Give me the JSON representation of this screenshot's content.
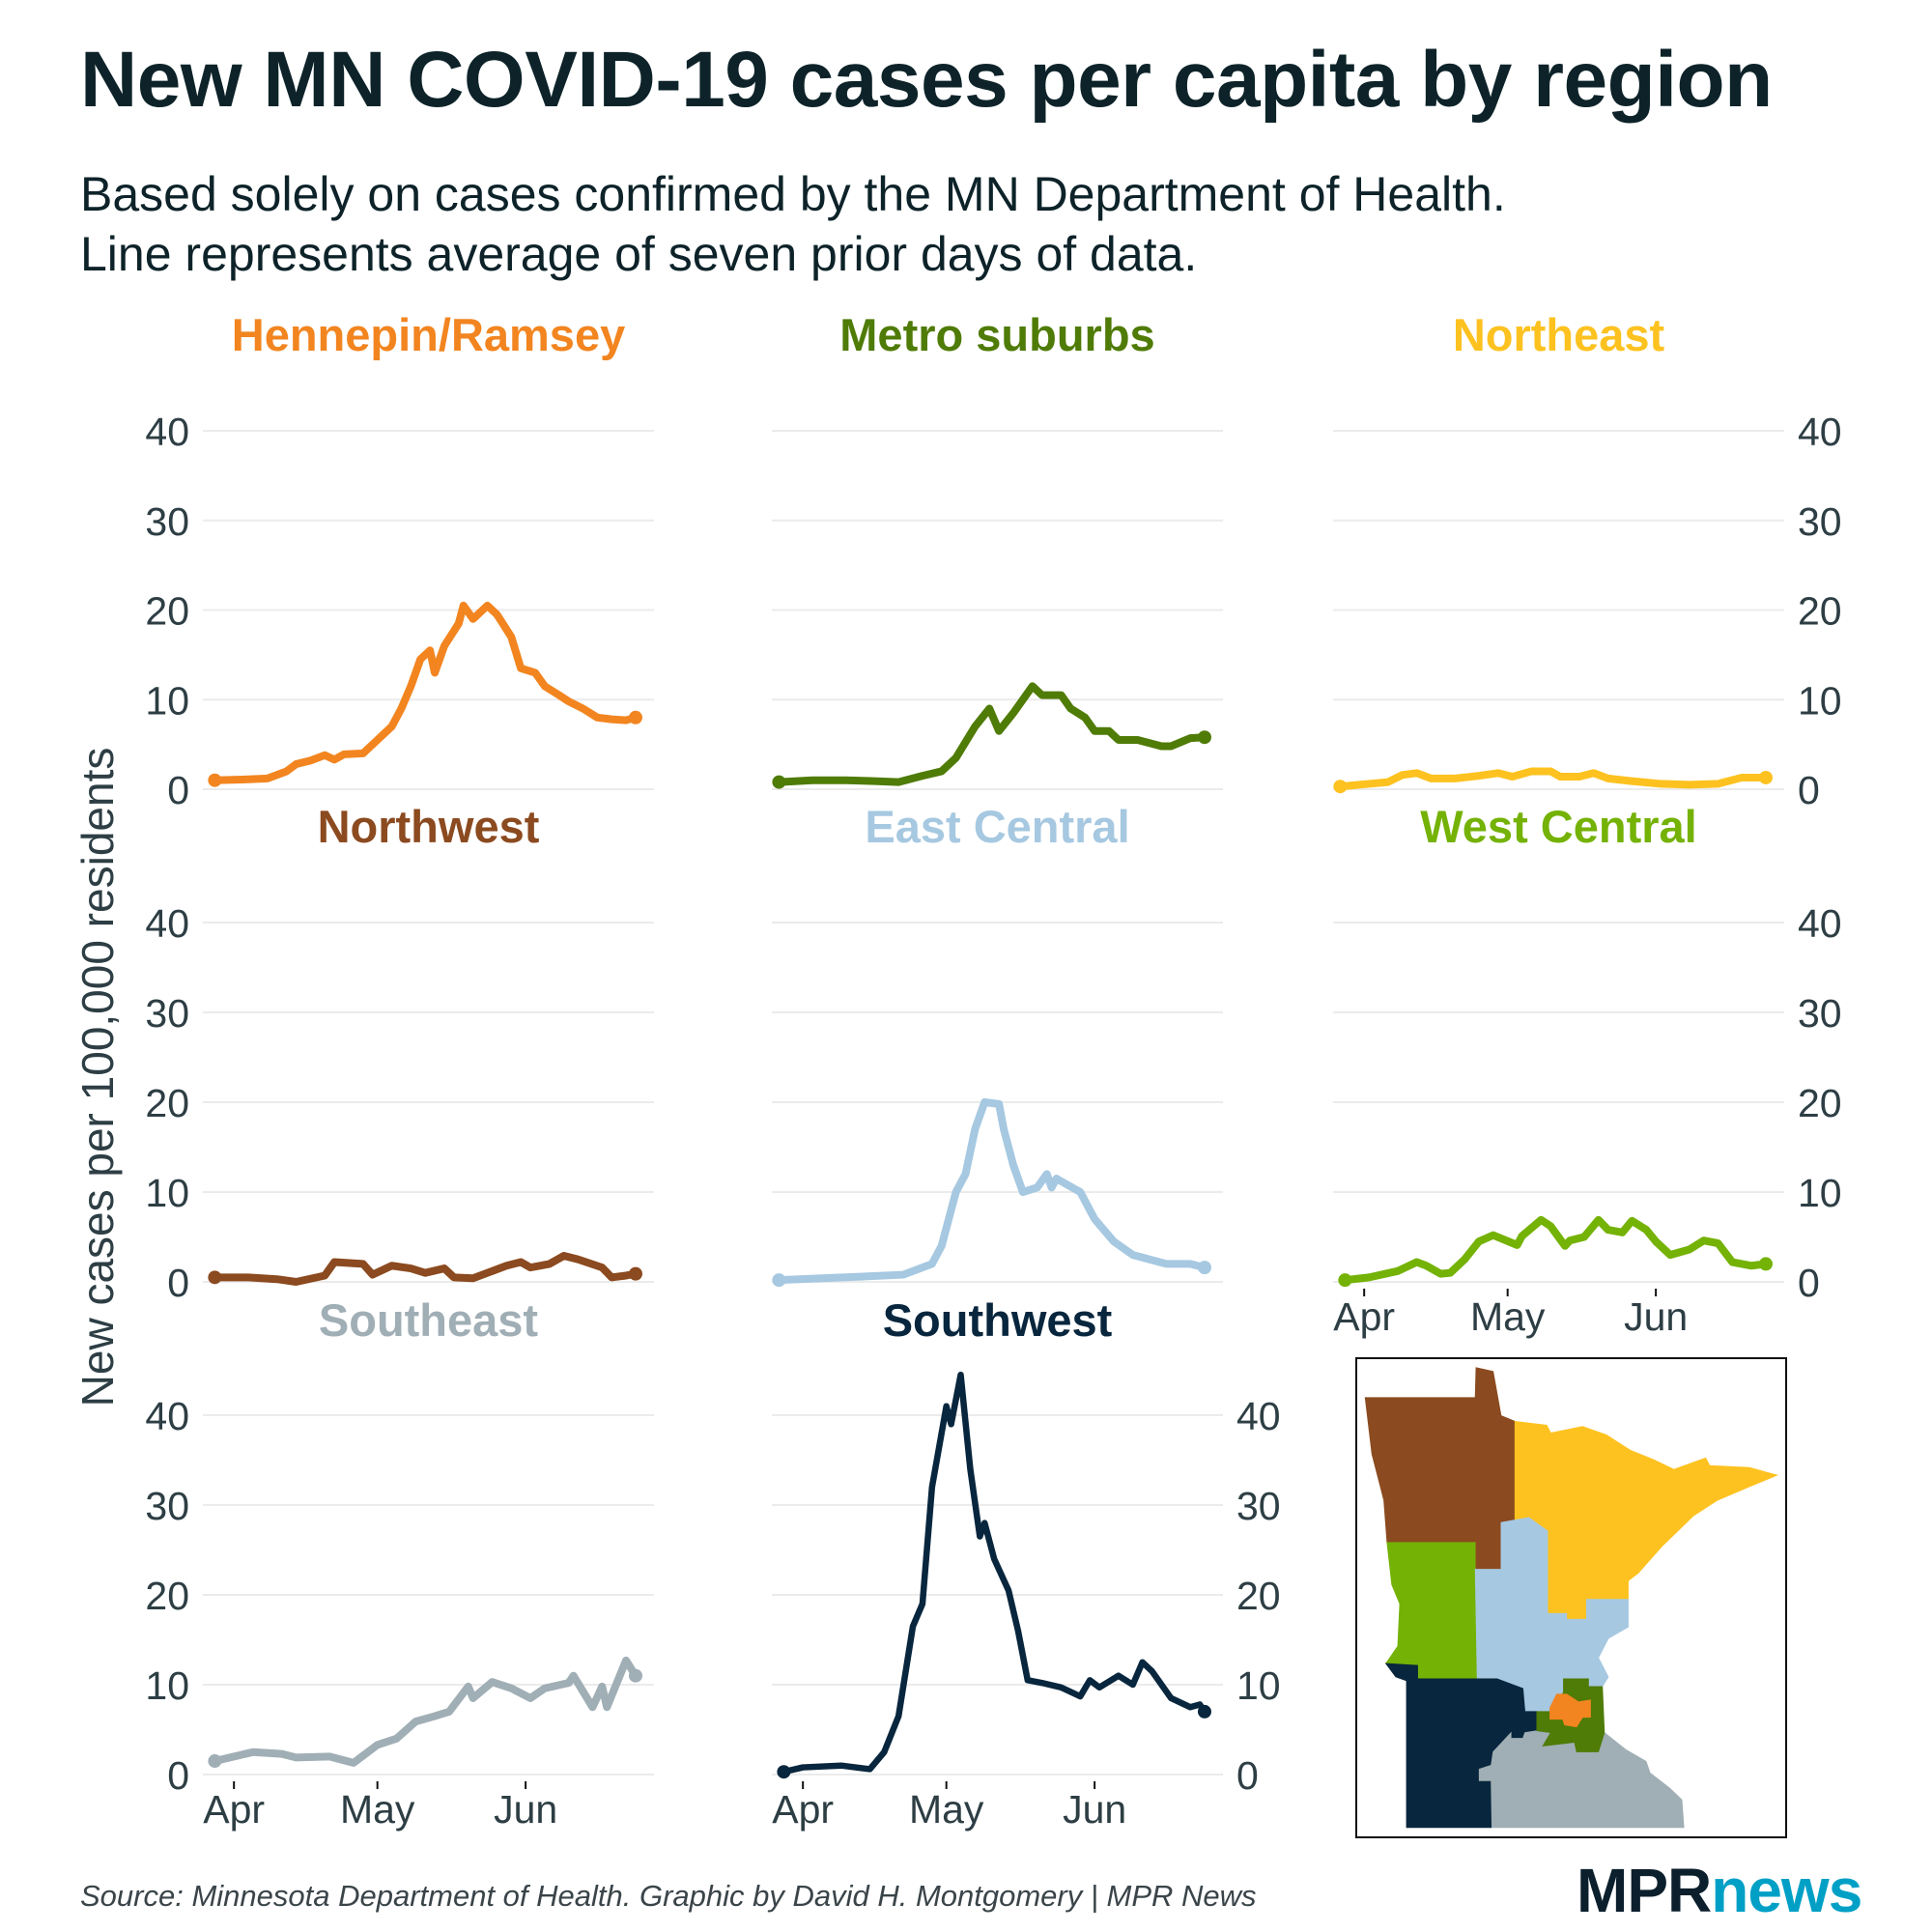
{
  "title": "New MN COVID-19 cases per capita by region",
  "subtitle": [
    "Based solely on cases confirmed by the MN Department of Health.",
    "Line represents average of seven prior days of data."
  ],
  "source": "Source: Minnesota Department of Health. Graphic by David H. Montgomery | MPR News",
  "logo": {
    "mpr": "MPR",
    "news": "news",
    "mpr_color": "#0B1F2C",
    "news_color": "#00A0C6"
  },
  "chart_data": {
    "type": "line",
    "layout": "small multiples, 3x3 grid with inset map",
    "ylabel": "New cases per 100,000 residents",
    "ylim": [
      0,
      40
    ],
    "y_ticks": [
      "0",
      "10",
      "20",
      "30",
      "40"
    ],
    "x_ticks": [
      {
        "label": "Apr",
        "date": "Apr 1"
      },
      {
        "label": "May",
        "date": "May 1"
      },
      {
        "label": "Jun",
        "date": "Jun 1"
      }
    ],
    "grid": true,
    "series": [
      {
        "name": "Hennepin/Ramsey",
        "color": "#F28520",
        "x": [
          "Mar 28",
          "Apr 4",
          "Apr 8",
          "Apr 12",
          "Apr 14",
          "Apr 17",
          "Apr 20",
          "Apr 22",
          "Apr 24",
          "Apr 28",
          "May 1",
          "May 4",
          "May 6",
          "May 8",
          "May 10",
          "May 12",
          "May 13",
          "May 15",
          "May 18",
          "May 19",
          "May 21",
          "May 24",
          "May 26",
          "May 29",
          "May 31",
          "Jun 3",
          "Jun 5",
          "Jun 8",
          "Jun 10",
          "Jun 13",
          "Jun 16",
          "Jun 19",
          "Jun 22",
          "Jun 24"
        ],
        "y": [
          1,
          1.1,
          1.2,
          2,
          2.8,
          3.2,
          3.8,
          3.3,
          3.9,
          4,
          5.5,
          7,
          9,
          11.5,
          14.5,
          15.5,
          13,
          16,
          18.5,
          20.5,
          19,
          20.5,
          19.5,
          17,
          13.5,
          13,
          11.5,
          10.5,
          9.8,
          9,
          8,
          7.8,
          7.7,
          8
        ]
      },
      {
        "name": "Metro suburbs",
        "color": "#4F7B07",
        "x": [
          "Mar 27",
          "Apr 3",
          "Apr 10",
          "Apr 16",
          "Apr 21",
          "Apr 26",
          "Apr 30",
          "May 3",
          "May 7",
          "May 10",
          "May 12",
          "May 15",
          "May 19",
          "May 21",
          "May 25",
          "May 27",
          "May 30",
          "Jun 1",
          "Jun 4",
          "Jun 6",
          "Jun 10",
          "Jun 15",
          "Jun 17",
          "Jun 21",
          "Jun 24"
        ],
        "y": [
          0.8,
          1,
          1,
          0.9,
          0.8,
          1.5,
          2,
          3.5,
          7,
          9,
          6.5,
          8.5,
          11.5,
          10.5,
          10.5,
          9,
          8,
          6.5,
          6.5,
          5.5,
          5.5,
          4.8,
          4.8,
          5.7,
          5.8
        ]
      },
      {
        "name": "Northeast",
        "color": "#FDC220",
        "x": [
          "Mar 27",
          "Apr 2",
          "Apr 6",
          "Apr 9",
          "Apr 12",
          "Apr 15",
          "Apr 20",
          "Apr 25",
          "Apr 29",
          "May 2",
          "May 6",
          "May 10",
          "May 12",
          "May 16",
          "May 19",
          "May 22",
          "May 27",
          "Jun 2",
          "Jun 8",
          "Jun 14",
          "Jun 19",
          "Jun 24"
        ],
        "y": [
          0.3,
          0.6,
          0.8,
          1.6,
          1.8,
          1.2,
          1.2,
          1.5,
          1.8,
          1.4,
          2,
          2,
          1.4,
          1.4,
          1.8,
          1.2,
          0.9,
          0.6,
          0.5,
          0.6,
          1.3,
          1.3
        ]
      },
      {
        "name": "Northwest",
        "color": "#8B4A1F",
        "x": [
          "Mar 28",
          "Apr 4",
          "Apr 10",
          "Apr 14",
          "Apr 20",
          "Apr 22",
          "Apr 28",
          "Apr 30",
          "May 4",
          "May 8",
          "May 11",
          "May 15",
          "May 17",
          "May 21",
          "May 25",
          "May 28",
          "May 31",
          "Jun 2",
          "Jun 6",
          "Jun 9",
          "Jun 12",
          "Jun 17",
          "Jun 19",
          "Jun 22",
          "Jun 24"
        ],
        "y": [
          0.5,
          0.5,
          0.3,
          0,
          0.7,
          2.2,
          2,
          0.8,
          1.8,
          1.5,
          1,
          1.5,
          0.5,
          0.4,
          1.2,
          1.8,
          2.2,
          1.6,
          2,
          2.9,
          2.5,
          1.6,
          0.5,
          0.7,
          0.9
        ]
      },
      {
        "name": "East Central",
        "color": "#A6C8E1",
        "x": [
          "Mar 27",
          "Apr 5",
          "Apr 14",
          "Apr 22",
          "Apr 28",
          "Apr 30",
          "May 3",
          "May 5",
          "May 7",
          "May 9",
          "May 12",
          "May 13",
          "May 15",
          "May 17",
          "May 20",
          "May 22",
          "May 23",
          "May 24",
          "May 29",
          "Jun 1",
          "Jun 5",
          "Jun 9",
          "Jun 16",
          "Jun 21",
          "Jun 24"
        ],
        "y": [
          0.2,
          0.4,
          0.6,
          0.8,
          2,
          4,
          10,
          12,
          17,
          20,
          19.8,
          17,
          13,
          10,
          10.5,
          12,
          10.5,
          11.5,
          10,
          7,
          4.5,
          3,
          2,
          2,
          1.6
        ]
      },
      {
        "name": "West Central",
        "color": "#74B206",
        "x": [
          "Mar 28",
          "Apr 2",
          "Apr 8",
          "Apr 12",
          "Apr 14",
          "Apr 17",
          "Apr 19",
          "Apr 22",
          "Apr 25",
          "Apr 28",
          "May 3",
          "May 4",
          "May 8",
          "May 10",
          "May 13",
          "May 14",
          "May 17",
          "May 20",
          "May 22",
          "May 25",
          "May 27",
          "May 30",
          "Jun 1",
          "Jun 4",
          "Jun 8",
          "Jun 11",
          "Jun 14",
          "Jun 17",
          "Jun 21",
          "Jun 24"
        ],
        "y": [
          0.2,
          0.5,
          1.2,
          2.2,
          1.8,
          0.9,
          1,
          2.5,
          4.5,
          5.2,
          4.1,
          5.1,
          6.9,
          6.2,
          4,
          4.6,
          5,
          6.9,
          5.8,
          5.5,
          6.8,
          5.8,
          4.5,
          3,
          3.6,
          4.6,
          4.3,
          2.2,
          1.8,
          2
        ]
      },
      {
        "name": "Southeast",
        "color": "#A0AEB5",
        "x": [
          "Mar 28",
          "Apr 1",
          "Apr 5",
          "Apr 11",
          "Apr 14",
          "Apr 21",
          "Apr 26",
          "May 1",
          "May 5",
          "May 9",
          "May 13",
          "May 16",
          "May 20",
          "May 21",
          "May 25",
          "May 29",
          "Jun 2",
          "Jun 5",
          "Jun 10",
          "Jun 11",
          "Jun 15",
          "Jun 17",
          "Jun 18",
          "Jun 22",
          "Jun 24"
        ],
        "y": [
          1.5,
          2,
          2.5,
          2.3,
          1.9,
          2,
          1.3,
          3.3,
          4,
          5.9,
          6.5,
          7,
          9.8,
          8.5,
          10.3,
          9.6,
          8.5,
          9.6,
          10.2,
          11,
          7.5,
          9.8,
          7.5,
          12.7,
          11
        ]
      },
      {
        "name": "Southwest",
        "color": "#08263D",
        "x": [
          "Mar 28",
          "Apr 1",
          "Apr 9",
          "Apr 15",
          "Apr 18",
          "Apr 21",
          "Apr 24",
          "Apr 26",
          "Apr 28",
          "May 1",
          "May 2",
          "May 4",
          "May 6",
          "May 8",
          "May 9",
          "May 11",
          "May 14",
          "May 16",
          "May 18",
          "May 21",
          "May 25",
          "May 29",
          "May 31",
          "Jun 2",
          "Jun 6",
          "Jun 9",
          "Jun 11",
          "Jun 13",
          "Jun 17",
          "Jun 21",
          "Jun 23",
          "Jun 24"
        ],
        "y": [
          0.3,
          0.8,
          1,
          0.6,
          2.5,
          6.5,
          16.5,
          19,
          32,
          41,
          39,
          44.5,
          34,
          26.5,
          28,
          24,
          20.5,
          16,
          10.5,
          10.2,
          9.7,
          8.7,
          10.5,
          9.7,
          11,
          10,
          12.5,
          11.5,
          8.5,
          7.5,
          7.8,
          7
        ]
      }
    ]
  },
  "map": {
    "regions": [
      {
        "name": "Northwest",
        "color": "#8B4A1F"
      },
      {
        "name": "Northeast",
        "color": "#FDC220"
      },
      {
        "name": "West Central",
        "color": "#74B206"
      },
      {
        "name": "East Central",
        "color": "#A6C8E1"
      },
      {
        "name": "Southwest",
        "color": "#08263D"
      },
      {
        "name": "Southeast",
        "color": "#A0AEB5"
      },
      {
        "name": "Metro suburbs",
        "color": "#4F7B07"
      },
      {
        "name": "Hennepin/Ramsey",
        "color": "#F28520"
      }
    ]
  }
}
